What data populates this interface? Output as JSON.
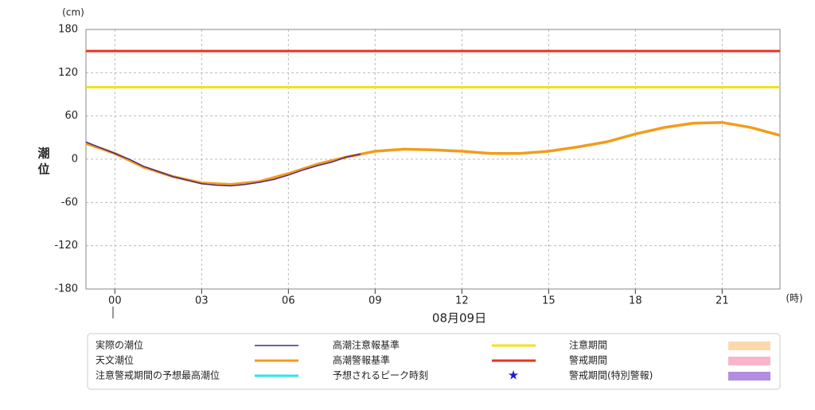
{
  "chart_data": {
    "type": "line",
    "y_label": "潮位",
    "y_unit": "(cm)",
    "x_unit": "(時)",
    "x_date": "08月09日",
    "xlim": [
      -1,
      23
    ],
    "xticks": [
      {
        "value": 0,
        "label": "00"
      },
      {
        "value": 3,
        "label": "03"
      },
      {
        "value": 6,
        "label": "06"
      },
      {
        "value": 9,
        "label": "09"
      },
      {
        "value": 12,
        "label": "12"
      },
      {
        "value": 15,
        "label": "15"
      },
      {
        "value": 18,
        "label": "18"
      },
      {
        "value": 21,
        "label": "21"
      }
    ],
    "ylim": [
      -180,
      180
    ],
    "yticks": [
      -180,
      -120,
      -60,
      0,
      60,
      120,
      180
    ],
    "grid": true,
    "series": [
      {
        "name": "実際の潮位",
        "color": "#4b2a8a",
        "width": 1.5,
        "x": [
          -1,
          -0.5,
          0,
          0.5,
          1,
          1.5,
          2,
          2.5,
          3,
          3.5,
          4,
          4.5,
          5,
          5.5,
          6,
          6.5,
          7,
          7.5,
          8,
          8.5
        ],
        "values": [
          24,
          16,
          8,
          0,
          -10,
          -17,
          -24,
          -29,
          -34,
          -36,
          -37,
          -35,
          -32,
          -28,
          -22,
          -15,
          -9,
          -4,
          3,
          7
        ]
      },
      {
        "name": "天文潮位",
        "color": "#f39c1a",
        "width": 3.5,
        "x": [
          -1,
          0,
          1,
          2,
          3,
          4,
          5,
          6,
          7,
          8,
          9,
          10,
          11,
          12,
          13,
          14,
          15,
          16,
          17,
          18,
          19,
          20,
          21,
          22,
          23
        ],
        "values": [
          22,
          8,
          -11,
          -24,
          -33,
          -35,
          -31,
          -20,
          -7,
          3,
          11,
          14,
          13,
          11,
          8,
          8,
          11,
          17,
          24,
          35,
          44,
          50,
          51,
          44,
          33
        ]
      }
    ],
    "thresholds": [
      {
        "name": "高潮注意報基準",
        "color": "#f2e21a",
        "value": 100
      },
      {
        "name": "高潮警報基準",
        "color": "#e8341c",
        "value": 150
      }
    ],
    "legend_only": [
      {
        "name": "注意警戒期間の予想最高潮位",
        "color": "#2ee6e6",
        "symbol": "line"
      },
      {
        "name": "予想されるピーク時刻",
        "color": "#1a1adb",
        "symbol": "star"
      },
      {
        "name": "注意期間",
        "color": "#fbd9ad",
        "symbol": "box"
      },
      {
        "name": "警戒期間",
        "color": "#f9b4cb",
        "symbol": "box"
      },
      {
        "name": "警戒期間(特別警報)",
        "color": "#b38ee0",
        "symbol": "box"
      }
    ]
  }
}
